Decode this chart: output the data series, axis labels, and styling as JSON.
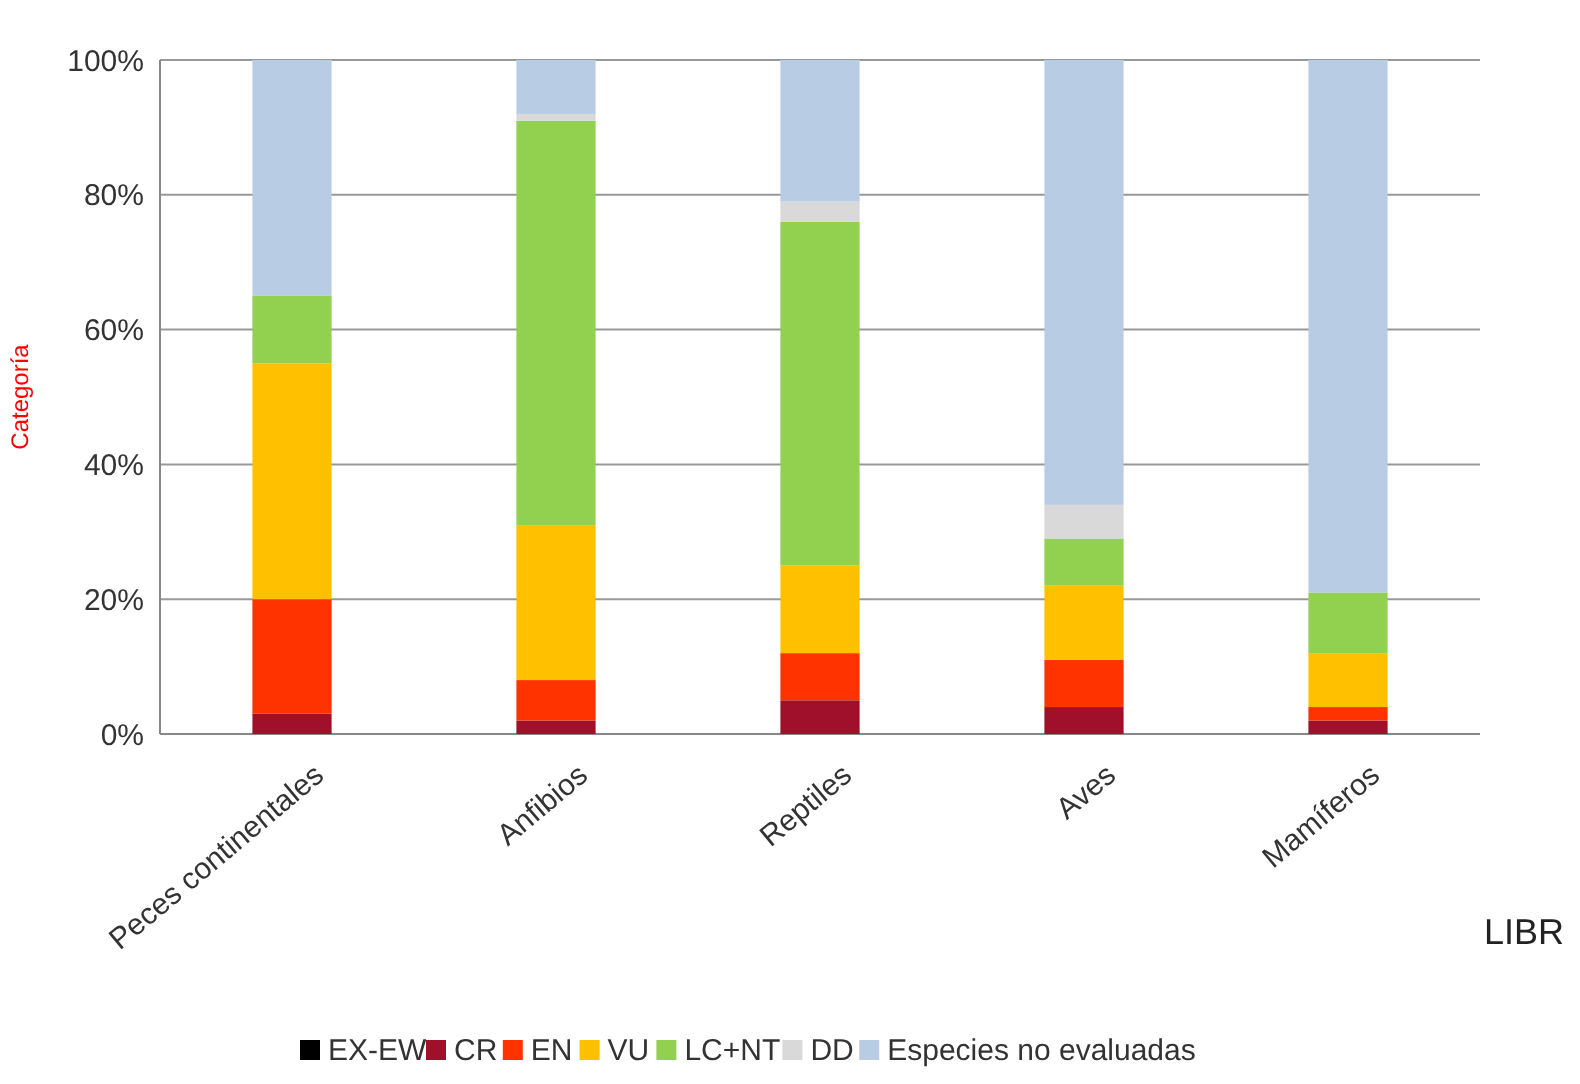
{
  "chart_data": {
    "type": "bar",
    "stacked": true,
    "ylabel": "Categoría",
    "xlabel": "LIBR",
    "categories": [
      "Peces continentales",
      "Anfibios",
      "Reptiles",
      "Aves",
      "Mamíferos"
    ],
    "series": [
      {
        "name": "EX-EW",
        "color": "#000000",
        "values": [
          0,
          0,
          0,
          0,
          0
        ]
      },
      {
        "name": "CR",
        "color": "#a0102a",
        "values": [
          3,
          2,
          5,
          4,
          2
        ]
      },
      {
        "name": "EN",
        "color": "#ff3300",
        "values": [
          17,
          6,
          7,
          7,
          2
        ]
      },
      {
        "name": "VU",
        "color": "#ffc000",
        "values": [
          35,
          23,
          13,
          11,
          8
        ]
      },
      {
        "name": "LC+NT",
        "color": "#92d050",
        "values": [
          10,
          60,
          51,
          7,
          9
        ]
      },
      {
        "name": "DD",
        "color": "#d9d9d9",
        "values": [
          0,
          1,
          3,
          5,
          0
        ]
      },
      {
        "name": "Especies no evaluadas",
        "color": "#b8cce4",
        "values": [
          35,
          8,
          21,
          66,
          79
        ]
      }
    ],
    "ylim": [
      0,
      100
    ],
    "yticks": [
      {
        "value": 0,
        "label": "0%"
      },
      {
        "value": 20,
        "label": "20%"
      },
      {
        "value": 40,
        "label": "40%"
      },
      {
        "value": 60,
        "label": "60%"
      },
      {
        "value": 80,
        "label": "80%"
      },
      {
        "value": 100,
        "label": "100%"
      }
    ],
    "grid": "y",
    "legend": "bottom"
  }
}
